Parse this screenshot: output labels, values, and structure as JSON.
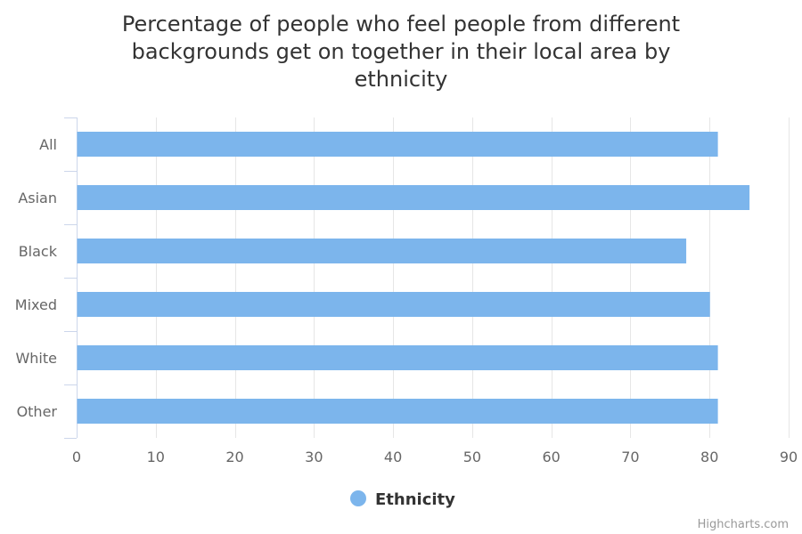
{
  "chart_data": {
    "type": "bar",
    "orientation": "horizontal",
    "title": "Percentage of people who feel people from different backgrounds get on together in their local area by ethnicity",
    "title_lines": [
      "Percentage of people who feel people from different",
      "backgrounds get on together in their local area by",
      "ethnicity"
    ],
    "categories": [
      "All",
      "Asian",
      "Black",
      "Mixed",
      "White",
      "Other"
    ],
    "series": [
      {
        "name": "Ethnicity",
        "values": [
          81,
          85,
          77,
          80,
          81,
          81
        ],
        "color": "#7cb5ec"
      }
    ],
    "xlim": [
      0,
      90
    ],
    "xticks": [
      0,
      10,
      20,
      30,
      40,
      50,
      60,
      70,
      80,
      90
    ],
    "grid": true,
    "legend_position": "bottom-center"
  },
  "credits": "Highcharts.com"
}
